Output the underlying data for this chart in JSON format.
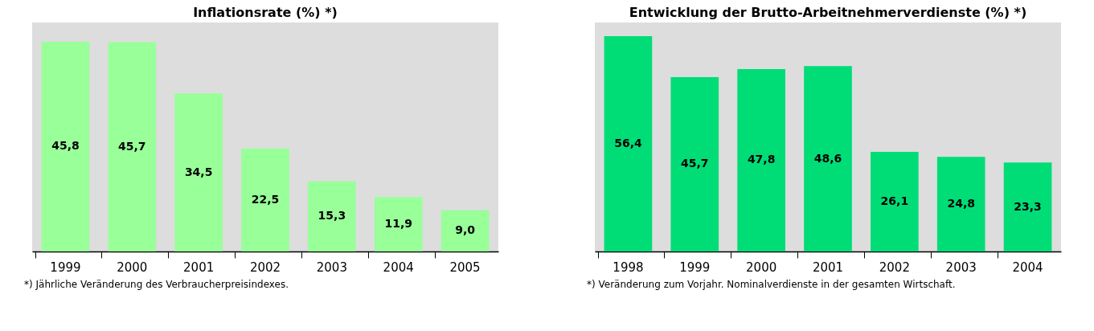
{
  "chart_data": [
    {
      "type": "bar",
      "title": "Inflationsrate (%) *)",
      "categories": [
        "1999",
        "2000",
        "2001",
        "2002",
        "2003",
        "2004",
        "2005"
      ],
      "values": [
        45.8,
        45.7,
        34.5,
        22.5,
        15.3,
        11.9,
        9.0
      ],
      "value_labels": [
        "45,8",
        "45,7",
        "34,5",
        "22,5",
        "15,3",
        "11,9",
        "9,0"
      ],
      "color": "#99ff99",
      "grid": false,
      "annotations": [
        "*) Jährliche Veränderung des Verbraucherpreisindexes."
      ]
    },
    {
      "type": "bar",
      "title": "Entwicklung der Brutto-Arbeitnehmerverdienste (%) *)",
      "categories": [
        "1998",
        "1999",
        "2000",
        "2001",
        "2002",
        "2003",
        "2004"
      ],
      "values": [
        56.4,
        45.7,
        47.8,
        48.6,
        26.1,
        24.8,
        23.3
      ],
      "value_labels": [
        "56,4",
        "45,7",
        "47,8",
        "48,6",
        "26,1",
        "24,8",
        "23,3"
      ],
      "color": "#00dd77",
      "grid": false,
      "annotations": [
        "*) Veränderung zum Vorjahr. Nominalverdienste in der gesamten Wirtschaft."
      ]
    }
  ]
}
